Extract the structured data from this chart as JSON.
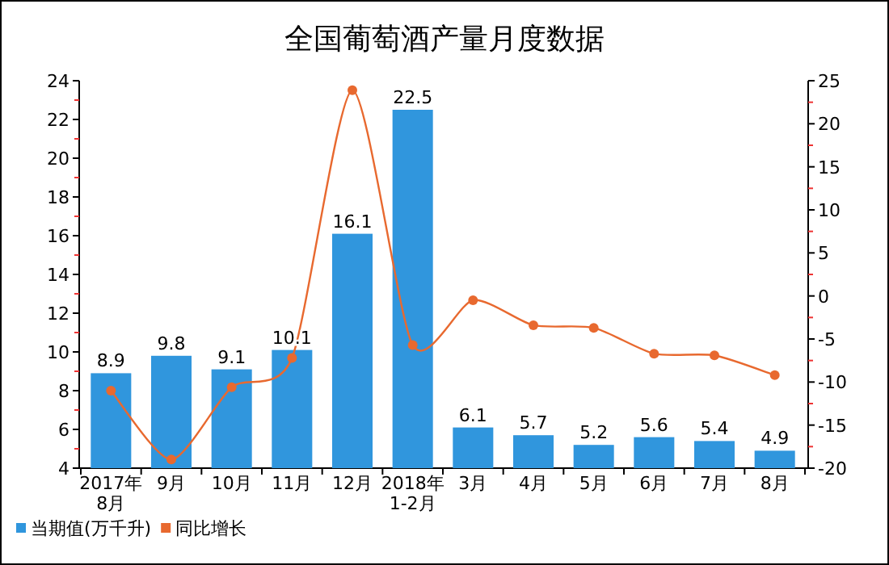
{
  "chart_data": {
    "type": "bar",
    "title": "全国葡萄酒产量月度数据",
    "categories": [
      "2017年\n8月",
      "9月",
      "10月",
      "11月",
      "12月",
      "2018年\n1-2月",
      "3月",
      "4月",
      "5月",
      "6月",
      "7月",
      "8月"
    ],
    "series": [
      {
        "name": "当期值(万千升)",
        "color": "#3096dd",
        "values": [
          8.9,
          9.8,
          9.1,
          10.1,
          16.1,
          22.5,
          6.1,
          5.7,
          5.2,
          5.6,
          5.4,
          4.9
        ],
        "value_labels": [
          "8.9",
          "9.8",
          "9.1",
          "10.1",
          "16.1",
          "22.5",
          "6.1",
          "5.7",
          "5.2",
          "5.6",
          "5.4",
          "4.9"
        ]
      },
      {
        "name": "同比增长",
        "type": "line",
        "axis": "y2",
        "color": "#e8692f",
        "marker": "circle",
        "values": [
          -11,
          -19,
          -10.6,
          -7.2,
          23.9,
          -5.7,
          -0.5,
          -3.4,
          -3.7,
          -6.7,
          -6.9,
          -9.2
        ]
      }
    ],
    "ylim": [
      4,
      24
    ],
    "yticks": [
      4,
      {
        "value": 5,
        "label": null
      },
      6,
      {
        "value": 7,
        "label": null
      },
      8,
      {
        "value": 9,
        "label": null
      },
      10,
      {
        "value": 11,
        "label": null
      },
      12,
      {
        "value": 13,
        "label": null
      },
      14,
      {
        "value": 15,
        "label": null
      },
      16,
      {
        "value": 17,
        "label": null
      },
      18,
      {
        "value": 19,
        "label": null
      },
      20,
      {
        "value": 21,
        "label": null
      },
      22,
      {
        "value": 23,
        "label": null
      },
      24
    ],
    "y2lim": [
      -20,
      25
    ],
    "y2ticks": [
      -20,
      {
        "value": -17.5,
        "label": null
      },
      -15,
      {
        "value": -12.5,
        "label": null
      },
      -10,
      {
        "value": -7.5,
        "label": null
      },
      -5,
      {
        "value": -2.5,
        "label": null
      },
      0,
      {
        "value": 2.5,
        "label": null
      },
      5,
      {
        "value": 7.5,
        "label": null
      },
      10,
      {
        "value": 12.5,
        "label": null
      },
      15,
      {
        "value": 17.5,
        "label": null
      },
      20,
      {
        "value": 22.5,
        "label": null
      },
      25
    ],
    "legend": "bottom left"
  }
}
